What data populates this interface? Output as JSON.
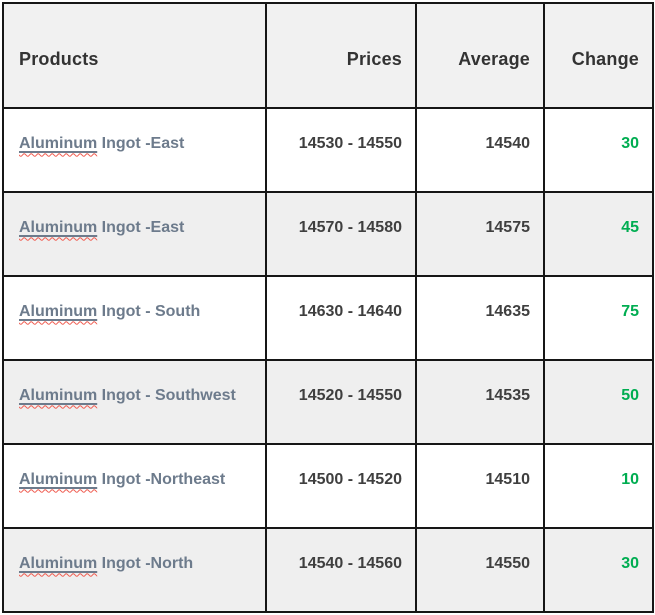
{
  "table": {
    "headers": {
      "products": "Products",
      "prices": "Prices",
      "average": "Average",
      "change": "Change"
    },
    "rows": [
      {
        "product_flagged": "Aluminum",
        "product_rest": " Ingot -East",
        "prices": "14530 - 14550",
        "average": "14540",
        "change": "30"
      },
      {
        "product_flagged": "Aluminum",
        "product_rest": " Ingot -East",
        "prices": "14570 - 14580",
        "average": "14575",
        "change": "45"
      },
      {
        "product_flagged": "Aluminum",
        "product_rest": " Ingot - South",
        "prices": "14630 - 14640",
        "average": "14635",
        "change": "75"
      },
      {
        "product_flagged": "Aluminum",
        "product_rest": " Ingot - Southwest",
        "prices": "14520 - 14550",
        "average": "14535",
        "change": "50"
      },
      {
        "product_flagged": "Aluminum",
        "product_rest": " Ingot -Northeast",
        "prices": "14500 - 14520",
        "average": "14510",
        "change": "10"
      },
      {
        "product_flagged": "Aluminum",
        "product_rest": " Ingot -North",
        "prices": "14540 - 14560",
        "average": "14550",
        "change": "30"
      }
    ]
  },
  "colors": {
    "border": "#161616",
    "header_bg": "#f1f1f1",
    "row_alt_bg": "#efefef",
    "row_bg": "#ffffff",
    "header_text": "#333333",
    "product_text": "#6d7b8c",
    "number_text": "#3f3f3f",
    "change_positive": "#00ad51",
    "spellcheck_squiggle": "#ef5a4e"
  },
  "chart_data": {
    "type": "table",
    "columns": [
      "Products",
      "Prices",
      "Average",
      "Change"
    ],
    "rows": [
      [
        "Aluminum Ingot -East",
        "14530 - 14550",
        14540,
        30
      ],
      [
        "Aluminum Ingot -East",
        "14570 - 14580",
        14575,
        45
      ],
      [
        "Aluminum Ingot - South",
        "14630 - 14640",
        14635,
        75
      ],
      [
        "Aluminum Ingot - Southwest",
        "14520 - 14550",
        14535,
        50
      ],
      [
        "Aluminum Ingot -Northeast",
        "14500 - 14520",
        14510,
        10
      ],
      [
        "Aluminum Ingot -North",
        "14540 - 14560",
        14550,
        30
      ]
    ],
    "notes": "All change values rendered in green (positive)."
  }
}
